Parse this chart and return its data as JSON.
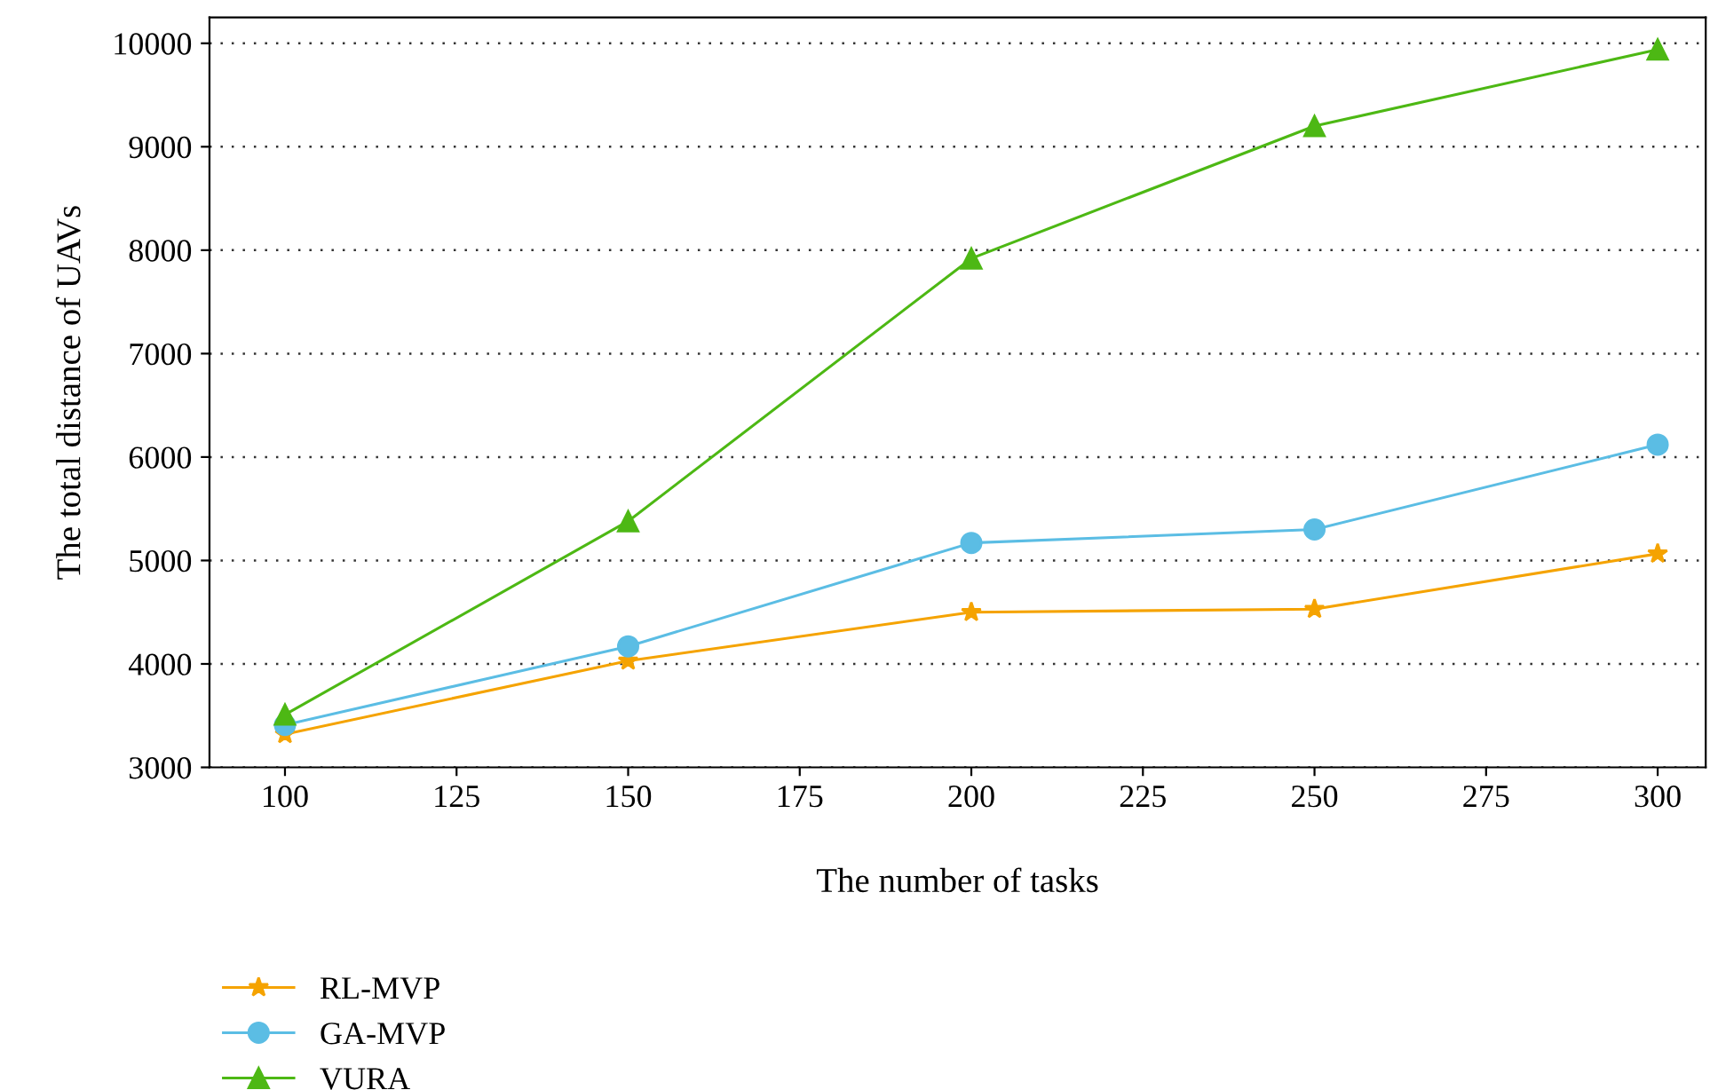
{
  "chart_data": {
    "type": "line",
    "xlabel": "The number of tasks",
    "ylabel": "The total distance of UAVs",
    "x": [
      100,
      150,
      200,
      250,
      300
    ],
    "xlim": [
      89,
      307
    ],
    "xticks": [
      100,
      125,
      150,
      175,
      200,
      225,
      250,
      275,
      300
    ],
    "ylim": [
      3000,
      10250
    ],
    "yticks": [
      3000,
      4000,
      5000,
      6000,
      7000,
      8000,
      9000,
      10000
    ],
    "grid": "y",
    "legend": "bottom left",
    "series": [
      {
        "name": "RL-MVP",
        "color": "#f5a300",
        "marker": "star",
        "values": [
          3320,
          4030,
          4500,
          4530,
          5065
        ]
      },
      {
        "name": "GA-MVP",
        "color": "#5bbde4",
        "marker": "circle",
        "values": [
          3410,
          4170,
          5170,
          5300,
          6120
        ]
      },
      {
        "name": "VURA",
        "color": "#4db814",
        "marker": "triangle",
        "values": [
          3510,
          5380,
          7920,
          9200,
          9940
        ]
      }
    ]
  }
}
